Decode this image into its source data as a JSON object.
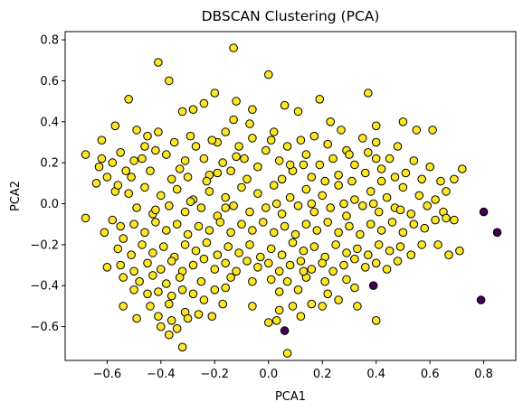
{
  "chart_data": {
    "type": "scatter",
    "title": "DBSCAN Clustering (PCA)",
    "xlabel": "PCA1",
    "ylabel": "PCA2",
    "xlim": [
      -0.756,
      0.919
    ],
    "ylim": [
      -0.765,
      0.84
    ],
    "xticks": [
      -0.6,
      -0.4,
      -0.2,
      0.0,
      0.2,
      0.4,
      0.6,
      0.8
    ],
    "xtick_labels": [
      "−0.6",
      "−0.4",
      "−0.2",
      "0.0",
      "0.2",
      "0.4",
      "0.6",
      "0.8"
    ],
    "yticks": [
      -0.6,
      -0.4,
      -0.2,
      0.0,
      0.2,
      0.4,
      0.6,
      0.8
    ],
    "ytick_labels": [
      "−0.6",
      "−0.4",
      "−0.2",
      "0.0",
      "0.2",
      "0.4",
      "0.6",
      "0.8"
    ],
    "grid": false,
    "legend": false,
    "colors": {
      "cluster": "#fde725",
      "noise": "#440154",
      "edge": "#000000"
    },
    "series": [
      {
        "role": "cluster",
        "points": [
          [
            -0.13,
            0.76
          ],
          [
            -0.41,
            0.69
          ],
          [
            0.0,
            0.63
          ],
          [
            -0.37,
            0.6
          ],
          [
            -0.2,
            0.54
          ],
          [
            -0.52,
            0.51
          ],
          [
            0.37,
            0.54
          ],
          [
            0.19,
            0.51
          ],
          [
            -0.32,
            0.45
          ],
          [
            -0.28,
            0.46
          ],
          [
            -0.24,
            0.49
          ],
          [
            -0.12,
            0.5
          ],
          [
            -0.06,
            0.46
          ],
          [
            0.06,
            0.48
          ],
          [
            0.11,
            0.45
          ],
          [
            0.5,
            0.4
          ],
          [
            0.61,
            0.36
          ],
          [
            0.55,
            0.36
          ],
          [
            -0.57,
            0.38
          ],
          [
            -0.49,
            0.36
          ],
          [
            -0.45,
            0.33
          ],
          [
            -0.41,
            0.35
          ],
          [
            -0.16,
            0.35
          ],
          [
            -0.13,
            0.41
          ],
          [
            -0.62,
            0.31
          ],
          [
            -0.63,
            0.18
          ],
          [
            -0.68,
            0.24
          ],
          [
            -0.58,
            0.2
          ],
          [
            -0.55,
            0.25
          ],
          [
            -0.53,
            0.16
          ],
          [
            -0.6,
            0.13
          ],
          [
            -0.57,
            0.06
          ],
          [
            -0.64,
            0.1
          ],
          [
            -0.51,
            0.13
          ],
          [
            -0.47,
            0.22
          ],
          [
            -0.44,
            0.16
          ],
          [
            -0.42,
            0.26
          ],
          [
            -0.38,
            0.24
          ],
          [
            -0.35,
            0.3
          ],
          [
            -0.33,
            0.17
          ],
          [
            -0.3,
            0.13
          ],
          [
            -0.27,
            0.28
          ],
          [
            -0.24,
            0.22
          ],
          [
            -0.22,
            0.14
          ],
          [
            -0.19,
            0.3
          ],
          [
            -0.17,
            0.2
          ],
          [
            -0.14,
            0.16
          ],
          [
            -0.11,
            0.28
          ],
          [
            -0.09,
            0.22
          ],
          [
            -0.06,
            0.32
          ],
          [
            -0.04,
            0.18
          ],
          [
            -0.01,
            0.26
          ],
          [
            0.02,
            0.35
          ],
          [
            0.04,
            0.21
          ],
          [
            0.07,
            0.28
          ],
          [
            0.09,
            0.16
          ],
          [
            0.12,
            0.31
          ],
          [
            0.14,
            0.24
          ],
          [
            0.17,
            0.33
          ],
          [
            0.19,
            0.19
          ],
          [
            0.22,
            0.29
          ],
          [
            0.24,
            0.22
          ],
          [
            0.27,
            0.36
          ],
          [
            0.29,
            0.26
          ],
          [
            0.32,
            0.19
          ],
          [
            0.35,
            0.32
          ],
          [
            0.37,
            0.25
          ],
          [
            0.4,
            0.3
          ],
          [
            0.42,
            0.17
          ],
          [
            0.45,
            0.22
          ],
          [
            0.48,
            0.28
          ],
          [
            0.51,
            0.15
          ],
          [
            0.54,
            0.21
          ],
          [
            0.57,
            0.12
          ],
          [
            0.6,
            0.18
          ],
          [
            0.64,
            0.11
          ],
          [
            0.66,
            0.06
          ],
          [
            0.69,
            0.12
          ],
          [
            0.72,
            0.17
          ],
          [
            -0.52,
            0.05
          ],
          [
            -0.46,
            0.08
          ],
          [
            -0.4,
            0.04
          ],
          [
            -0.34,
            0.07
          ],
          [
            -0.28,
            0.02
          ],
          [
            -0.22,
            0.06
          ],
          [
            -0.16,
            0.03
          ],
          [
            -0.1,
            0.08
          ],
          [
            -0.04,
            0.05
          ],
          [
            0.02,
            0.09
          ],
          [
            0.08,
            0.03
          ],
          [
            0.14,
            0.07
          ],
          [
            0.2,
            0.04
          ],
          [
            0.26,
            0.09
          ],
          [
            0.32,
            0.02
          ],
          [
            0.38,
            0.06
          ],
          [
            0.44,
            0.03
          ],
          [
            0.5,
            0.08
          ],
          [
            0.56,
            0.04
          ],
          [
            0.62,
            0.02
          ],
          [
            -0.49,
            -0.02
          ],
          [
            -0.43,
            -0.05
          ],
          [
            -0.37,
            -0.01
          ],
          [
            -0.31,
            -0.04
          ],
          [
            -0.25,
            -0.02
          ],
          [
            -0.19,
            -0.06
          ],
          [
            -0.13,
            -0.01
          ],
          [
            -0.07,
            -0.04
          ],
          [
            -0.01,
            -0.02
          ],
          [
            0.05,
            -0.05
          ],
          [
            0.11,
            -0.01
          ],
          [
            0.17,
            -0.04
          ],
          [
            0.23,
            -0.02
          ],
          [
            0.29,
            -0.06
          ],
          [
            0.35,
            -0.01
          ],
          [
            0.41,
            -0.04
          ],
          [
            0.47,
            -0.02
          ],
          [
            0.53,
            -0.05
          ],
          [
            0.59,
            -0.01
          ],
          [
            0.65,
            -0.04
          ],
          [
            -0.68,
            -0.07
          ],
          [
            -0.58,
            -0.08
          ],
          [
            -0.55,
            -0.11
          ],
          [
            -0.61,
            -0.14
          ],
          [
            -0.54,
            -0.17
          ],
          [
            -0.5,
            -0.1
          ],
          [
            -0.46,
            -0.14
          ],
          [
            -0.42,
            -0.09
          ],
          [
            -0.38,
            -0.13
          ],
          [
            -0.34,
            -0.1
          ],
          [
            -0.3,
            -0.15
          ],
          [
            -0.26,
            -0.11
          ],
          [
            -0.22,
            -0.13
          ],
          [
            -0.18,
            -0.09
          ],
          [
            -0.14,
            -0.14
          ],
          [
            -0.1,
            -0.1
          ],
          [
            -0.06,
            -0.13
          ],
          [
            -0.02,
            -0.09
          ],
          [
            0.02,
            -0.14
          ],
          [
            0.06,
            -0.11
          ],
          [
            0.1,
            -0.15
          ],
          [
            0.14,
            -0.1
          ],
          [
            0.18,
            -0.13
          ],
          [
            0.22,
            -0.09
          ],
          [
            0.26,
            -0.14
          ],
          [
            0.3,
            -0.11
          ],
          [
            0.34,
            -0.15
          ],
          [
            0.38,
            -0.1
          ],
          [
            0.42,
            -0.13
          ],
          [
            0.46,
            -0.09
          ],
          [
            0.5,
            -0.14
          ],
          [
            0.54,
            -0.1
          ],
          [
            0.58,
            -0.12
          ],
          [
            0.62,
            -0.08
          ],
          [
            0.66,
            -0.07
          ],
          [
            0.69,
            -0.08
          ],
          [
            -0.56,
            -0.22
          ],
          [
            -0.51,
            -0.25
          ],
          [
            -0.47,
            -0.2
          ],
          [
            -0.43,
            -0.24
          ],
          [
            -0.39,
            -0.21
          ],
          [
            -0.35,
            -0.26
          ],
          [
            -0.31,
            -0.2
          ],
          [
            -0.27,
            -0.23
          ],
          [
            -0.23,
            -0.19
          ],
          [
            -0.19,
            -0.25
          ],
          [
            -0.15,
            -0.21
          ],
          [
            -0.11,
            -0.24
          ],
          [
            -0.07,
            -0.2
          ],
          [
            -0.03,
            -0.26
          ],
          [
            0.01,
            -0.22
          ],
          [
            0.05,
            -0.25
          ],
          [
            0.09,
            -0.19
          ],
          [
            0.13,
            -0.23
          ],
          [
            0.17,
            -0.21
          ],
          [
            0.21,
            -0.26
          ],
          [
            0.25,
            -0.2
          ],
          [
            0.29,
            -0.24
          ],
          [
            0.33,
            -0.22
          ],
          [
            0.37,
            -0.25
          ],
          [
            0.41,
            -0.2
          ],
          [
            0.45,
            -0.23
          ],
          [
            0.49,
            -0.21
          ],
          [
            0.53,
            -0.25
          ],
          [
            0.57,
            -0.2
          ],
          [
            0.63,
            -0.2
          ],
          [
            0.67,
            -0.25
          ],
          [
            0.71,
            -0.23
          ],
          [
            -0.6,
            -0.31
          ],
          [
            -0.55,
            -0.3
          ],
          [
            -0.5,
            -0.33
          ],
          [
            -0.45,
            -0.29
          ],
          [
            -0.4,
            -0.32
          ],
          [
            -0.36,
            -0.28
          ],
          [
            -0.32,
            -0.33
          ],
          [
            -0.28,
            -0.3
          ],
          [
            -0.24,
            -0.27
          ],
          [
            -0.2,
            -0.32
          ],
          [
            -0.16,
            -0.29
          ],
          [
            -0.12,
            -0.33
          ],
          [
            -0.08,
            -0.28
          ],
          [
            -0.04,
            -0.31
          ],
          [
            0.0,
            -0.29
          ],
          [
            0.04,
            -0.33
          ],
          [
            0.08,
            -0.3
          ],
          [
            0.12,
            -0.28
          ],
          [
            0.16,
            -0.32
          ],
          [
            0.2,
            -0.29
          ],
          [
            0.24,
            -0.33
          ],
          [
            0.28,
            -0.3
          ],
          [
            0.32,
            -0.27
          ],
          [
            0.36,
            -0.31
          ],
          [
            0.4,
            -0.29
          ],
          [
            0.44,
            -0.32
          ],
          [
            0.48,
            -0.28
          ],
          [
            -0.54,
            -0.36
          ],
          [
            -0.48,
            -0.38
          ],
          [
            -0.43,
            -0.35
          ],
          [
            -0.38,
            -0.39
          ],
          [
            -0.33,
            -0.36
          ],
          [
            -0.25,
            -0.38
          ],
          [
            -0.14,
            -0.36
          ],
          [
            -0.06,
            -0.38
          ],
          [
            0.01,
            -0.37
          ],
          [
            0.07,
            -0.38
          ],
          [
            0.14,
            -0.36
          ],
          [
            0.21,
            -0.38
          ],
          [
            0.29,
            -0.37
          ],
          [
            -0.5,
            -0.42
          ],
          [
            -0.45,
            -0.44
          ],
          [
            -0.41,
            -0.43
          ],
          [
            -0.36,
            -0.45
          ],
          [
            -0.32,
            -0.42
          ],
          [
            -0.28,
            -0.44
          ],
          [
            -0.2,
            -0.42
          ],
          [
            -0.16,
            -0.41
          ],
          [
            0.04,
            -0.43
          ],
          [
            0.11,
            -0.42
          ],
          [
            0.22,
            -0.44
          ],
          [
            0.32,
            -0.41
          ],
          [
            -0.54,
            -0.5
          ],
          [
            -0.44,
            -0.5
          ],
          [
            -0.37,
            -0.49
          ],
          [
            -0.31,
            -0.53
          ],
          [
            -0.24,
            -0.47
          ],
          [
            -0.17,
            -0.49
          ],
          [
            -0.06,
            -0.5
          ],
          [
            0.04,
            -0.52
          ],
          [
            0.16,
            -0.49
          ],
          [
            0.26,
            -0.47
          ],
          [
            0.33,
            -0.5
          ],
          [
            -0.49,
            -0.56
          ],
          [
            -0.41,
            -0.55
          ],
          [
            -0.4,
            -0.6
          ],
          [
            -0.36,
            -0.57
          ],
          [
            -0.3,
            -0.56
          ],
          [
            -0.26,
            -0.54
          ],
          [
            -0.21,
            -0.55
          ],
          [
            0.03,
            -0.57
          ],
          [
            0.0,
            -0.58
          ],
          [
            0.4,
            -0.57
          ],
          [
            -0.37,
            -0.64
          ],
          [
            -0.34,
            -0.61
          ],
          [
            -0.32,
            -0.7
          ],
          [
            0.12,
            -0.55
          ],
          [
            0.2,
            -0.5
          ],
          [
            0.09,
            -0.5
          ],
          [
            0.13,
            -0.33
          ],
          [
            0.07,
            -0.73
          ],
          [
            -0.46,
            0.28
          ],
          [
            -0.29,
            0.33
          ],
          [
            -0.21,
            0.31
          ],
          [
            0.01,
            0.31
          ],
          [
            0.16,
            0.13
          ],
          [
            0.31,
            0.11
          ],
          [
            0.42,
            0.11
          ],
          [
            -0.23,
            0.11
          ],
          [
            -0.08,
            0.12
          ],
          [
            0.05,
            0.12
          ],
          [
            0.26,
            0.14
          ],
          [
            0.36,
            0.15
          ],
          [
            -0.56,
            0.09
          ],
          [
            -0.36,
            0.12
          ],
          [
            -0.19,
            0.15
          ],
          [
            0.08,
            0.19
          ],
          [
            0.21,
            0.11
          ],
          [
            0.47,
            0.13
          ],
          [
            -0.62,
            0.22
          ],
          [
            -0.5,
            0.21
          ],
          [
            -0.31,
            0.21
          ],
          [
            -0.12,
            0.23
          ],
          [
            0.13,
            0.19
          ],
          [
            0.3,
            0.24
          ],
          [
            0.4,
            0.22
          ],
          [
            -0.07,
            0.39
          ],
          [
            0.23,
            0.4
          ],
          [
            0.4,
            0.38
          ],
          [
            -0.42,
            -0.03
          ],
          [
            -0.29,
            0.01
          ],
          [
            -0.16,
            -0.02
          ],
          [
            0.03,
            0.0
          ],
          [
            0.16,
            0.0
          ],
          [
            0.28,
            0.0
          ],
          [
            0.39,
            0.0
          ],
          [
            0.49,
            -0.03
          ]
        ]
      },
      {
        "role": "noise",
        "points": [
          [
            0.8,
            -0.04
          ],
          [
            0.85,
            -0.14
          ],
          [
            0.79,
            -0.47
          ],
          [
            0.39,
            -0.4
          ],
          [
            0.06,
            -0.62
          ]
        ]
      }
    ]
  }
}
